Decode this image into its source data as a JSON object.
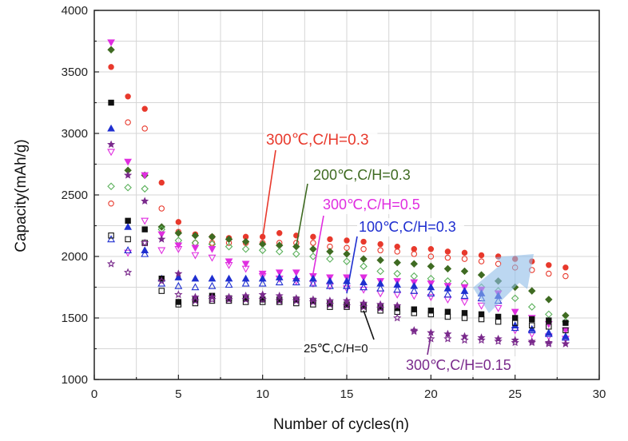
{
  "chart_data": {
    "type": "scatter",
    "xlabel": "Number of cycles(n)",
    "ylabel": "Capacity(mAh/g)",
    "xlim": [
      0,
      30
    ],
    "ylim": [
      1000,
      4000
    ],
    "xticks": [
      "0",
      "5",
      "10",
      "15",
      "20",
      "25",
      "30"
    ],
    "yticks": [
      "1000",
      "1500",
      "2000",
      "2500",
      "3000",
      "3500",
      "4000"
    ],
    "grid": true,
    "annotations": [
      {
        "text": "300℃,C/H=0.3",
        "color": "#e8392c",
        "target": [
          10,
          2150
        ]
      },
      {
        "text": "200℃,C/H=0.3",
        "color": "#3f6b22",
        "target": [
          12,
          2080
        ]
      },
      {
        "text": "300℃,C/H=0.5",
        "color": "#e02ee0",
        "target": [
          13,
          1860
        ]
      },
      {
        "text": "100℃,C/H=0.3",
        "color": "#1f2fd0",
        "target": [
          15,
          1700
        ]
      },
      {
        "text": "25℃,C/H=0",
        "color": "#111111",
        "target": [
          16,
          1560
        ]
      },
      {
        "text": "300℃,C/H=0.15",
        "color": "#7a2a8c",
        "target": [
          20,
          1360
        ]
      }
    ],
    "series": [
      {
        "marker": "circle",
        "fill": "filled",
        "color": "#e8392c",
        "x": [
          1,
          2,
          3,
          4,
          5,
          6,
          7,
          8,
          9,
          10,
          11,
          12,
          13,
          14,
          15,
          16,
          17,
          18,
          19,
          20,
          21,
          22,
          23,
          24,
          25,
          26,
          27,
          28
        ],
        "y": [
          3540,
          3300,
          3200,
          2600,
          2280,
          2180,
          2160,
          2150,
          2160,
          2160,
          2190,
          2170,
          2160,
          2140,
          2130,
          2120,
          2100,
          2080,
          2060,
          2060,
          2040,
          2030,
          2010,
          2000,
          1980,
          1960,
          1930,
          1910
        ]
      },
      {
        "marker": "circle",
        "fill": "hollow",
        "color": "#e8392c",
        "x": [
          1,
          2,
          3,
          4,
          5,
          6,
          7,
          8,
          9,
          10,
          11,
          12,
          13,
          14,
          15,
          16,
          17,
          18,
          19,
          20,
          21,
          22,
          23,
          24,
          25,
          26,
          27,
          28
        ],
        "y": [
          2430,
          3090,
          3040,
          2390,
          2200,
          2110,
          2110,
          2110,
          2110,
          2110,
          2110,
          2110,
          2110,
          2080,
          2070,
          2060,
          2050,
          2040,
          2020,
          2000,
          1990,
          1980,
          1960,
          1940,
          1910,
          1890,
          1860,
          1840
        ]
      },
      {
        "marker": "diamond",
        "fill": "filled",
        "color": "#3f6b22",
        "x": [
          1,
          2,
          3,
          4,
          5,
          6,
          7,
          8,
          9,
          10,
          11,
          12,
          13,
          14,
          15,
          16,
          17,
          18,
          19,
          20,
          21,
          22,
          23,
          24,
          25,
          26,
          27,
          28
        ],
        "y": [
          3680,
          2700,
          2660,
          2240,
          2190,
          2170,
          2160,
          2140,
          2120,
          2100,
          2090,
          2080,
          2060,
          2040,
          2020,
          1980,
          1970,
          1950,
          1940,
          1920,
          1900,
          1880,
          1850,
          1800,
          1750,
          1720,
          1650,
          1520
        ]
      },
      {
        "marker": "diamond",
        "fill": "hollow",
        "color": "#5ab05a",
        "x": [
          1,
          2,
          3,
          4,
          5,
          6,
          7,
          8,
          9,
          10,
          11,
          12,
          13,
          14,
          15,
          16,
          17,
          18,
          19,
          20,
          21,
          22,
          23,
          24,
          25,
          26,
          27,
          28
        ],
        "y": [
          2570,
          2560,
          2550,
          2220,
          2130,
          2110,
          2100,
          2080,
          2060,
          2050,
          2040,
          2020,
          2000,
          1980,
          1960,
          1920,
          1880,
          1860,
          1840,
          1820,
          1800,
          1780,
          1750,
          1720,
          1660,
          1590,
          1530,
          1470
        ]
      },
      {
        "marker": "triangle-down",
        "fill": "filled",
        "color": "#e02ee0",
        "x": [
          1,
          2,
          3,
          4,
          5,
          6,
          7,
          8,
          9,
          10,
          11,
          12,
          13,
          14,
          15,
          16,
          17,
          18,
          19,
          20,
          21,
          22,
          23,
          24,
          25,
          26,
          27,
          28
        ],
        "y": [
          3740,
          2770,
          2660,
          2180,
          2090,
          2070,
          2060,
          1960,
          1940,
          1860,
          1870,
          1870,
          1840,
          1830,
          1830,
          1830,
          1800,
          1800,
          1790,
          1780,
          1760,
          1750,
          1730,
          1700,
          1550,
          1500,
          1450,
          1400
        ]
      },
      {
        "marker": "triangle-down",
        "fill": "hollow",
        "color": "#e02ee0",
        "x": [
          1,
          2,
          3,
          4,
          5,
          6,
          7,
          8,
          9,
          10,
          11,
          12,
          13,
          14,
          15,
          16,
          17,
          18,
          19,
          20,
          21,
          22,
          23,
          24,
          25,
          26,
          27,
          28
        ],
        "y": [
          2850,
          2030,
          2290,
          2050,
          2060,
          2010,
          1990,
          1930,
          1900,
          1840,
          1820,
          1800,
          1780,
          1760,
          1740,
          1730,
          1700,
          1690,
          1680,
          1670,
          1650,
          1630,
          1600,
          1580,
          1400,
          1370,
          1350,
          1330
        ]
      },
      {
        "marker": "triangle-up",
        "fill": "filled",
        "color": "#1f2fd0",
        "x": [
          1,
          2,
          3,
          4,
          5,
          6,
          7,
          8,
          9,
          10,
          11,
          12,
          13,
          14,
          15,
          16,
          17,
          18,
          19,
          20,
          21,
          22,
          23,
          24,
          25,
          26,
          27,
          28
        ],
        "y": [
          3040,
          2240,
          2050,
          1820,
          1830,
          1820,
          1820,
          1820,
          1820,
          1820,
          1830,
          1820,
          1820,
          1800,
          1800,
          1790,
          1780,
          1770,
          1760,
          1750,
          1740,
          1720,
          1700,
          1680,
          1440,
          1410,
          1380,
          1350
        ]
      },
      {
        "marker": "triangle-up",
        "fill": "hollow",
        "color": "#1f2fd0",
        "x": [
          1,
          2,
          3,
          4,
          5,
          6,
          7,
          8,
          9,
          10,
          11,
          12,
          13,
          14,
          15,
          16,
          17,
          18,
          19,
          20,
          21,
          22,
          23,
          24,
          25,
          26,
          27,
          28
        ],
        "y": [
          2140,
          2050,
          2020,
          1780,
          1760,
          1750,
          1760,
          1770,
          1780,
          1780,
          1790,
          1790,
          1780,
          1760,
          1760,
          1750,
          1740,
          1730,
          1720,
          1700,
          1690,
          1680,
          1660,
          1640,
          1420,
          1400,
          1370,
          1340
        ]
      },
      {
        "marker": "square",
        "fill": "filled",
        "color": "#111111",
        "x": [
          1,
          2,
          3,
          4,
          5,
          6,
          7,
          8,
          9,
          10,
          11,
          12,
          13,
          14,
          15,
          16,
          17,
          18,
          19,
          20,
          21,
          22,
          23,
          24,
          25,
          26,
          27,
          28
        ],
        "y": [
          3250,
          2290,
          2220,
          1820,
          1630,
          1650,
          1680,
          1660,
          1660,
          1650,
          1650,
          1650,
          1640,
          1620,
          1610,
          1600,
          1590,
          1580,
          1570,
          1560,
          1550,
          1540,
          1530,
          1510,
          1500,
          1490,
          1480,
          1460
        ]
      },
      {
        "marker": "square",
        "fill": "hollow",
        "color": "#111111",
        "x": [
          1,
          2,
          3,
          4,
          5,
          6,
          7,
          8,
          9,
          10,
          11,
          12,
          13,
          14,
          15,
          16,
          17,
          18,
          19,
          20,
          21,
          22,
          23,
          24,
          25,
          26,
          27,
          28
        ],
        "y": [
          2170,
          2140,
          2110,
          1720,
          1610,
          1620,
          1640,
          1640,
          1630,
          1630,
          1630,
          1620,
          1610,
          1590,
          1590,
          1570,
          1560,
          1550,
          1540,
          1530,
          1510,
          1500,
          1490,
          1470,
          1460,
          1440,
          1430,
          1400
        ]
      },
      {
        "marker": "star",
        "fill": "filled",
        "color": "#7a2a8c",
        "x": [
          1,
          2,
          3,
          4,
          5,
          6,
          7,
          8,
          9,
          10,
          11,
          12,
          13,
          14,
          15,
          16,
          17,
          18,
          19,
          20,
          21,
          22,
          23,
          24,
          25,
          26,
          27,
          28
        ],
        "y": [
          2910,
          2660,
          2450,
          2140,
          1860,
          1670,
          1670,
          1670,
          1680,
          1690,
          1680,
          1660,
          1650,
          1640,
          1640,
          1620,
          1610,
          1600,
          1400,
          1380,
          1370,
          1350,
          1340,
          1330,
          1320,
          1310,
          1300,
          1290
        ]
      },
      {
        "marker": "star",
        "fill": "hollow",
        "color": "#7a2a8c",
        "x": [
          1,
          2,
          3,
          4,
          5,
          6,
          7,
          8,
          9,
          10,
          11,
          12,
          13,
          14,
          15,
          16,
          17,
          18,
          19,
          20,
          21,
          22,
          23,
          24,
          25,
          26,
          27,
          28
        ],
        "y": [
          1940,
          1870,
          2110,
          1800,
          1690,
          1640,
          1650,
          1650,
          1650,
          1650,
          1640,
          1640,
          1630,
          1610,
          1600,
          1590,
          1580,
          1500,
          1390,
          1330,
          1330,
          1320,
          1320,
          1310,
          1300,
          1300,
          1290,
          1290
        ]
      }
    ]
  }
}
